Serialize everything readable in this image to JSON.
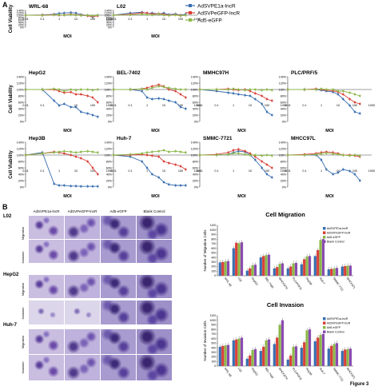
{
  "panel_labels": {
    "a": "A",
    "b": "B"
  },
  "figure_label": "Figure 3",
  "legend": {
    "items": [
      {
        "name": "AdSVPE1a-lncR",
        "color": "#3a6fb0"
      },
      {
        "name": "AdSVPeGFP-lncR",
        "color": "#d9403a"
      },
      {
        "name": "Ad5-eGFP",
        "color": "#8cb84a"
      }
    ]
  },
  "x_ticks": [
    "0.01",
    "0.1",
    "1",
    "10",
    "100",
    "1000"
  ],
  "y_ticks": [
    "0%",
    "20%",
    "40%",
    "60%",
    "80%",
    "100%",
    "120%",
    "140%"
  ],
  "colors": {
    "s1": "#3a6fb0",
    "s2": "#d9403a",
    "s3": "#8cb84a",
    "s4": "#8a4bb0"
  },
  "chart_data": [
    {
      "type": "line",
      "title": "WRL-68",
      "xlabel": "MOI",
      "ylabel": "Cell Viability",
      "x": [
        0.01,
        0.1,
        0.5,
        1,
        2,
        5,
        10,
        20,
        50,
        100,
        200
      ],
      "series": [
        {
          "name": "AdSVPE1a-lncR",
          "values": [
            100,
            102,
            108,
            115,
            118,
            122,
            118,
            105,
            98,
            85,
            100
          ]
        },
        {
          "name": "AdSVPeGFP-lncR",
          "values": [
            100,
            100,
            105,
            100,
            102,
            108,
            103,
            100,
            95,
            90,
            95
          ]
        },
        {
          "name": "Ad5-eGFP",
          "values": [
            100,
            98,
            102,
            103,
            100,
            105,
            100,
            98,
            100,
            95,
            100
          ]
        }
      ]
    },
    {
      "type": "line",
      "title": "L02",
      "xlabel": "MOI",
      "ylabel": "",
      "x": [
        0.01,
        0.1,
        0.5,
        1,
        2,
        5,
        10,
        20,
        50,
        100,
        200
      ],
      "series": [
        {
          "name": "AdSVPE1a-lncR",
          "values": [
            100,
            118,
            125,
            115,
            118,
            110,
            118,
            105,
            110,
            100,
            108
          ]
        },
        {
          "name": "AdSVPeGFP-lncR",
          "values": [
            100,
            108,
            120,
            118,
            110,
            112,
            108,
            100,
            105,
            98,
            100
          ]
        },
        {
          "name": "Ad5-eGFP",
          "values": [
            100,
            102,
            108,
            104,
            102,
            110,
            100,
            98,
            102,
            95,
            100
          ]
        }
      ]
    },
    {
      "type": "line",
      "title": "HepG2",
      "xlabel": "MOI",
      "ylabel": "Cell Viability",
      "x": [
        0.01,
        0.1,
        0.5,
        1,
        2,
        5,
        10,
        20,
        50,
        100,
        200
      ],
      "series": [
        {
          "name": "AdSVPE1a-lncR",
          "values": [
            100,
            100,
            65,
            50,
            55,
            45,
            45,
            30,
            25,
            20,
            15
          ]
        },
        {
          "name": "AdSVPeGFP-lncR",
          "values": [
            100,
            100,
            100,
            95,
            90,
            92,
            85,
            85,
            80,
            75,
            60
          ]
        },
        {
          "name": "Ad5-eGFP",
          "values": [
            100,
            100,
            102,
            100,
            95,
            100,
            98,
            100,
            100,
            98,
            100
          ]
        }
      ]
    },
    {
      "type": "line",
      "title": "BEL-7402",
      "xlabel": "MOI",
      "ylabel": "",
      "x": [
        0.01,
        0.1,
        0.5,
        1,
        2,
        5,
        10,
        20,
        50,
        100,
        200
      ],
      "series": [
        {
          "name": "AdSVPE1a-lncR",
          "values": [
            100,
            100,
            95,
            75,
            70,
            72,
            70,
            65,
            60,
            45,
            40
          ]
        },
        {
          "name": "AdSVPeGFP-lncR",
          "values": [
            100,
            100,
            102,
            105,
            110,
            115,
            110,
            100,
            95,
            85,
            75
          ]
        },
        {
          "name": "Ad5-eGFP",
          "values": [
            100,
            100,
            102,
            100,
            105,
            110,
            108,
            105,
            102,
            100,
            100
          ]
        }
      ]
    },
    {
      "type": "line",
      "title": "MMHC97H",
      "xlabel": "MOI",
      "ylabel": "",
      "x": [
        0.01,
        0.1,
        0.5,
        1,
        2,
        5,
        10,
        20,
        50,
        100,
        200
      ],
      "series": [
        {
          "name": "AdSVPE1a-lncR",
          "values": [
            100,
            95,
            90,
            88,
            85,
            82,
            80,
            70,
            55,
            30,
            20
          ]
        },
        {
          "name": "AdSVPeGFP-lncR",
          "values": [
            100,
            100,
            102,
            100,
            98,
            100,
            95,
            88,
            80,
            70,
            65
          ]
        },
        {
          "name": "Ad5-eGFP",
          "values": [
            100,
            100,
            100,
            102,
            100,
            98,
            100,
            100,
            98,
            100,
            98
          ]
        }
      ]
    },
    {
      "type": "line",
      "title": "PLC/PRF/5",
      "xlabel": "MOI",
      "ylabel": "",
      "x": [
        0.01,
        0.1,
        0.5,
        1,
        2,
        5,
        10,
        20,
        50,
        100,
        200
      ],
      "series": [
        {
          "name": "AdSVPE1a-lncR",
          "values": [
            100,
            100,
            100,
            98,
            95,
            92,
            85,
            70,
            50,
            30,
            25
          ]
        },
        {
          "name": "AdSVPeGFP-lncR",
          "values": [
            100,
            100,
            102,
            100,
            98,
            96,
            92,
            85,
            70,
            60,
            55
          ]
        },
        {
          "name": "Ad5-eGFP",
          "values": [
            100,
            100,
            100,
            102,
            100,
            100,
            95,
            95,
            90,
            85,
            80
          ]
        }
      ]
    },
    {
      "type": "line",
      "title": "Hep3B",
      "xlabel": "MOI",
      "ylabel": "Cell Viability",
      "x": [
        0.01,
        0.1,
        0.5,
        1,
        2,
        5,
        10,
        20,
        50,
        100,
        200
      ],
      "series": [
        {
          "name": "AdSVPE1a-lncR",
          "values": [
            100,
            108,
            10,
            5,
            5,
            3,
            3,
            2,
            2,
            2,
            2
          ]
        },
        {
          "name": "AdSVPeGFP-lncR",
          "values": [
            100,
            105,
            110,
            108,
            105,
            100,
            95,
            90,
            80,
            60,
            40
          ]
        },
        {
          "name": "Ad5-eGFP",
          "values": [
            100,
            105,
            108,
            110,
            112,
            110,
            108,
            110,
            112,
            110,
            108
          ]
        }
      ]
    },
    {
      "type": "line",
      "title": "Huh-7",
      "xlabel": "MOI",
      "ylabel": "",
      "x": [
        0.01,
        0.1,
        0.5,
        1,
        2,
        5,
        10,
        20,
        50,
        100,
        200
      ],
      "series": [
        {
          "name": "AdSVPE1a-lncR",
          "values": [
            100,
            95,
            80,
            60,
            40,
            30,
            15,
            8,
            5,
            5,
            5
          ]
        },
        {
          "name": "AdSVPeGFP-lncR",
          "values": [
            100,
            100,
            102,
            100,
            98,
            95,
            80,
            75,
            70,
            65,
            55
          ]
        },
        {
          "name": "Ad5-eGFP",
          "values": [
            100,
            102,
            105,
            108,
            110,
            112,
            115,
            110,
            112,
            110,
            108
          ]
        }
      ]
    },
    {
      "type": "line",
      "title": "SMMC-7721",
      "xlabel": "MOI",
      "ylabel": "",
      "x": [
        0.01,
        0.1,
        0.5,
        1,
        2,
        5,
        10,
        20,
        50,
        100,
        200
      ],
      "series": [
        {
          "name": "AdSVPE1a-lncR",
          "values": [
            100,
            100,
            102,
            108,
            112,
            110,
            100,
            85,
            60,
            40,
            30
          ]
        },
        {
          "name": "AdSVPeGFP-lncR",
          "values": [
            100,
            102,
            108,
            115,
            118,
            112,
            105,
            95,
            80,
            70,
            60
          ]
        },
        {
          "name": "Ad5-eGFP",
          "values": [
            100,
            100,
            102,
            105,
            105,
            102,
            100,
            100,
            98,
            100,
            98
          ]
        }
      ]
    },
    {
      "type": "line",
      "title": "MHCC97L",
      "xlabel": "MOI",
      "ylabel": "",
      "x": [
        0.01,
        0.1,
        0.5,
        1,
        2,
        5,
        10,
        20,
        50,
        100,
        200
      ],
      "series": [
        {
          "name": "AdSVPE1a-lncR",
          "values": [
            100,
            100,
            100,
            85,
            55,
            40,
            45,
            55,
            50,
            40,
            20
          ]
        },
        {
          "name": "AdSVPeGFP-lncR",
          "values": [
            100,
            102,
            105,
            108,
            110,
            108,
            105,
            100,
            100,
            98,
            95
          ]
        },
        {
          "name": "Ad5-eGFP",
          "values": [
            100,
            100,
            102,
            104,
            106,
            104,
            102,
            100,
            98,
            100,
            98
          ]
        }
      ]
    },
    {
      "type": "bar",
      "title": "Cell Migration",
      "ylabel": "Number of Migration Cells",
      "ylim": [
        0,
        1100
      ],
      "categories": [
        "WRL-68",
        "L02",
        "HepG2",
        "BEL-7402",
        "MHCC97H",
        "PLC/PRF/5",
        "Hep3B",
        "Huh-7",
        "SMMC-7721",
        "MHCC97L"
      ],
      "legend_labels": [
        "AdSVPE1a-lncR",
        "AdSVPeGFP-lncR",
        "Ad5-eGFP",
        "Blank Control"
      ],
      "y_ticks": [
        "0",
        "100",
        "200",
        "300",
        "400",
        "500",
        "600",
        "700",
        "800",
        "900",
        "1000",
        "1100"
      ],
      "series": [
        {
          "name": "AdSVPE1a-lncR",
          "values": [
            290,
            600,
            110,
            400,
            160,
            160,
            250,
            430,
            140,
            200
          ]
        },
        {
          "name": "AdSVPeGFP-lncR",
          "values": [
            300,
            720,
            160,
            430,
            190,
            200,
            360,
            560,
            150,
            210
          ]
        },
        {
          "name": "Ad5-eGFP",
          "values": [
            310,
            710,
            230,
            450,
            260,
            270,
            420,
            780,
            160,
            220
          ]
        },
        {
          "name": "Blank Control",
          "values": [
            320,
            730,
            240,
            460,
            270,
            280,
            430,
            800,
            170,
            220
          ]
        }
      ]
    },
    {
      "type": "bar",
      "title": "Cell Invasion",
      "ylabel": "Number of Invasion Cells",
      "ylim": [
        0,
        1100
      ],
      "categories": [
        "WRL-68",
        "L02",
        "HepG2",
        "BEL-7402",
        "MHCC97H",
        "PLC/PRF/5",
        "Hep3B",
        "Huh-7",
        "SMMC-7721",
        "MHCC97L"
      ],
      "legend_labels": [
        "AdSVPE1a-lncR",
        "AdSVPeGFP-lncR",
        "Ad5-eGFP",
        "Blank Control"
      ],
      "y_ticks": [
        "0",
        "100",
        "200",
        "300",
        "400",
        "500",
        "600",
        "700",
        "800",
        "900",
        "1000",
        "1100"
      ],
      "series": [
        {
          "name": "AdSVPE1a-lncR",
          "values": [
            420,
            560,
            160,
            330,
            480,
            140,
            400,
            540,
            380,
            330
          ]
        },
        {
          "name": "AdSVPeGFP-lncR",
          "values": [
            440,
            580,
            230,
            420,
            620,
            230,
            520,
            620,
            440,
            360
          ]
        },
        {
          "name": "Ad5-eGFP",
          "values": [
            450,
            600,
            350,
            560,
            900,
            420,
            780,
            680,
            480,
            370
          ]
        },
        {
          "name": "Blank Control",
          "values": [
            460,
            620,
            370,
            580,
            1000,
            430,
            800,
            700,
            500,
            380
          ]
        }
      ]
    }
  ],
  "micrographs": {
    "column_headers": [
      "AdSVPE1a-lncR",
      "AdSVPeGFP-lncR",
      "Ad5-eGFP",
      "Blank Control"
    ],
    "row_groups": [
      {
        "cell": "L02",
        "rows": [
          "Migration",
          "Invasion"
        ]
      },
      {
        "cell": "HepG2",
        "rows": [
          "Migration",
          "Invasion"
        ]
      },
      {
        "cell": "Huh-7",
        "rows": [
          "Migration",
          "Invasion"
        ]
      }
    ]
  }
}
